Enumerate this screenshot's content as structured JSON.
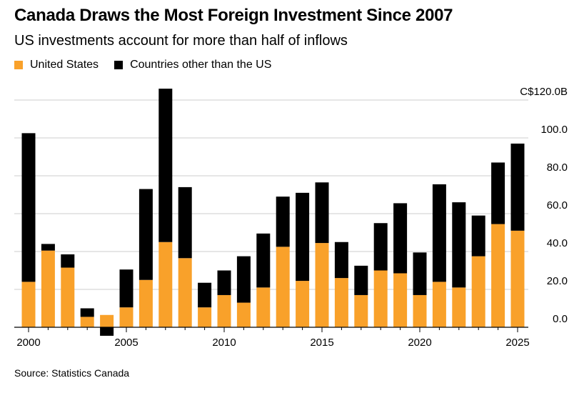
{
  "title": "Canada Draws the Most Foreign Investment Since 2007",
  "subtitle": "US investments account for more than half of inflows",
  "source": "Source: Statistics Canada",
  "colors": {
    "us": "#f9a12a",
    "other": "#000000",
    "grid": "#cccccc",
    "axis": "#000000"
  },
  "chart_data": {
    "type": "bar",
    "stacked": true,
    "legend_position": "top-left",
    "grid": true,
    "x": [
      2000,
      2001,
      2002,
      2003,
      2004,
      2005,
      2006,
      2007,
      2008,
      2009,
      2010,
      2011,
      2012,
      2013,
      2014,
      2015,
      2016,
      2017,
      2018,
      2019,
      2020,
      2021,
      2022,
      2023,
      2024,
      2025
    ],
    "series": [
      {
        "name": "United States",
        "color_key": "us",
        "values": [
          24,
          40.5,
          31.5,
          5.5,
          6.5,
          10.5,
          25,
          45,
          36.5,
          10.5,
          17,
          13,
          21,
          42.5,
          24.5,
          44.5,
          26,
          17,
          30,
          28.5,
          17,
          24,
          21,
          37.5,
          54.5,
          51
        ]
      },
      {
        "name": "Countries other than the US",
        "color_key": "other",
        "values": [
          78.5,
          3.5,
          7,
          4.5,
          -4.5,
          20,
          48,
          81,
          37.5,
          13,
          13,
          24.5,
          28.5,
          26.5,
          46.5,
          32,
          19,
          15.5,
          25,
          37,
          22.5,
          51.5,
          45,
          21.5,
          32.5,
          46
        ]
      }
    ],
    "x_ticks": [
      "2000",
      "2005",
      "2010",
      "2015",
      "2020",
      "2025"
    ],
    "y_ticks": [
      "0.0",
      "20.0",
      "40.0",
      "60.0",
      "80.0",
      "100.0",
      "C$120.0B"
    ],
    "ylim": [
      -5,
      120
    ]
  }
}
